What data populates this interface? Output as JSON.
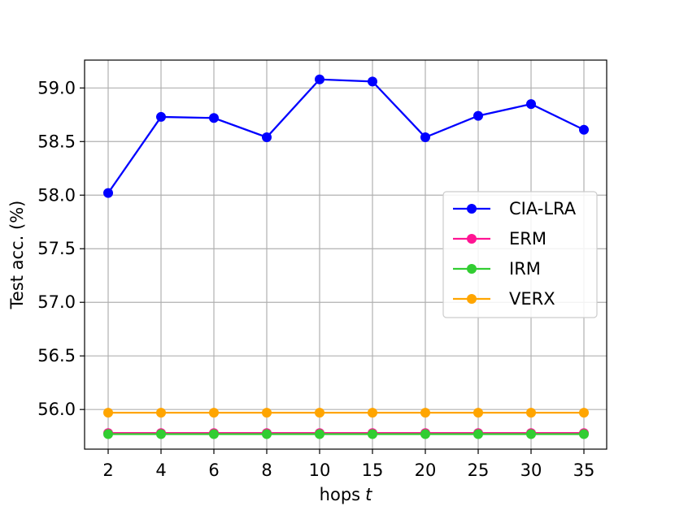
{
  "chart_data": {
    "type": "line",
    "title": "",
    "xlabel": "hops",
    "xlabel_var": "t",
    "ylabel": "Test acc. (%)",
    "categories": [
      "2",
      "4",
      "6",
      "8",
      "10",
      "15",
      "20",
      "25",
      "30",
      "35"
    ],
    "ylim": [
      55.63,
      59.26
    ],
    "yticks": [
      "56.0",
      "56.5",
      "57.0",
      "57.5",
      "58.0",
      "58.5",
      "59.0"
    ],
    "grid": true,
    "legend_position": "center-right",
    "series": [
      {
        "name": "CIA-LRA",
        "color": "#0000ff",
        "values": [
          58.02,
          58.73,
          58.72,
          58.54,
          59.08,
          59.06,
          58.54,
          58.74,
          58.85,
          58.61
        ]
      },
      {
        "name": "ERM",
        "color": "#ff1493",
        "values": [
          55.78,
          55.78,
          55.78,
          55.78,
          55.78,
          55.78,
          55.78,
          55.78,
          55.78,
          55.78
        ]
      },
      {
        "name": "IRM",
        "color": "#32cd32",
        "values": [
          55.77,
          55.77,
          55.77,
          55.77,
          55.77,
          55.77,
          55.77,
          55.77,
          55.77,
          55.77
        ]
      },
      {
        "name": "VERX",
        "color": "#ffa500",
        "values": [
          55.97,
          55.97,
          55.97,
          55.97,
          55.97,
          55.97,
          55.97,
          55.97,
          55.97,
          55.97
        ]
      }
    ]
  }
}
